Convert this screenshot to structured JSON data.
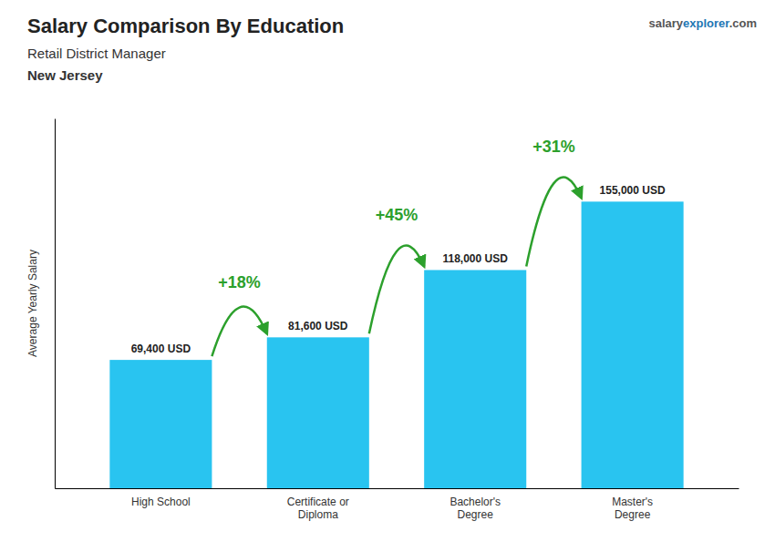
{
  "chart_data": {
    "type": "bar",
    "title": "Salary Comparison By Education",
    "subtitle": "Retail District Manager",
    "location": "New Jersey",
    "watermark": [
      "salary",
      "explorer",
      ".com"
    ],
    "ylabel": "Average Yearly Salary",
    "categories": [
      "High School",
      "Certificate or\nDiploma",
      "Bachelor's\nDegree",
      "Master's\nDegree"
    ],
    "values": [
      69400,
      81600,
      118000,
      155000
    ],
    "value_labels": [
      "69,400 USD",
      "81,600 USD",
      "118,000 USD",
      "155,000 USD"
    ],
    "data_labels": true,
    "annotations": [
      "+18%",
      "+45%",
      "+31%"
    ],
    "color": "#29c4f0",
    "ylim": [
      0,
      200000
    ],
    "tick_labels": "x",
    "grid": false
  }
}
